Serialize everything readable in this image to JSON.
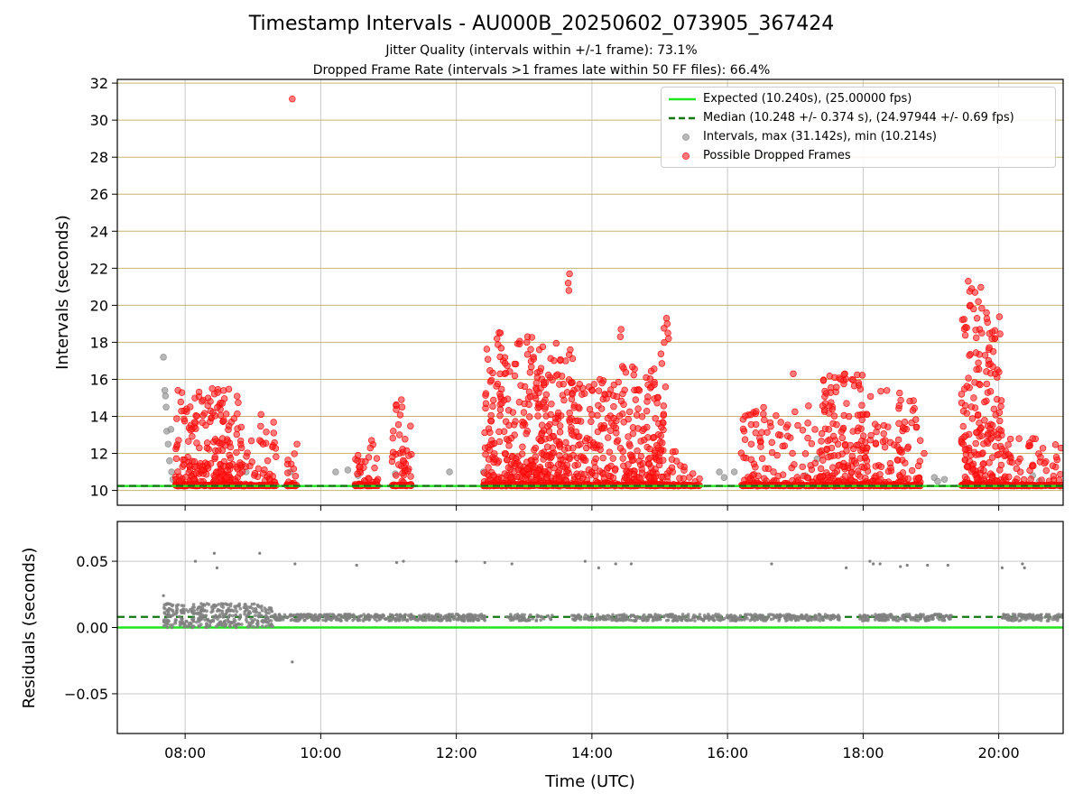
{
  "figure": {
    "title": "Timestamp Intervals - AU000B_20250602_073905_367424",
    "subtitle_1": "Jitter Quality (intervals within +/-1 frame): 73.1%",
    "subtitle_2": "Dropped Frame Rate (intervals >1 frames late within 50 FF files): 66.4%"
  },
  "colors": {
    "expected": "#22e522",
    "median": "#117711",
    "interval": "#999999",
    "dropped": "#ff2222",
    "residual": "#808080",
    "grid_top": "#c8b46e",
    "grid": "#c8c8c8"
  },
  "legend": {
    "expected": "Expected (10.240s), (25.00000 fps)",
    "median": "Median (10.248 +/- 0.374 s), (24.97944 +/- 0.69 fps)",
    "intervals": "Intervals, max (31.142s), min (10.214s)",
    "dropped": "Possible Dropped Frames"
  },
  "chart_data": [
    {
      "type": "scatter",
      "panel": "top",
      "ylabel": "Intervals (seconds)",
      "ylim": [
        9.2,
        32.2
      ],
      "yticks": [
        "10",
        "12",
        "14",
        "16",
        "18",
        "20",
        "22",
        "24",
        "26",
        "28",
        "30",
        "32"
      ],
      "xlim_hours": [
        7.0,
        20.95
      ],
      "xticks": [
        "08:00",
        "10:00",
        "12:00",
        "14:00",
        "16:00",
        "18:00",
        "20:00"
      ],
      "grid": "on",
      "legend_position": "upper-right",
      "expected_line": 10.24,
      "median_line": 10.248,
      "series": [
        {
          "name": "Intervals, max (31.142s), min (10.214s)",
          "points": [
            [
              7.68,
              17.2
            ],
            [
              7.7,
              15.4
            ],
            [
              7.71,
              15.1
            ],
            [
              7.72,
              14.5
            ],
            [
              7.73,
              13.2
            ],
            [
              7.75,
              12.5
            ],
            [
              7.77,
              11.6
            ],
            [
              7.79,
              13.3
            ],
            [
              7.8,
              11.0
            ],
            [
              7.82,
              10.6
            ],
            [
              8.9,
              11.0
            ],
            [
              9.55,
              11.0
            ],
            [
              10.22,
              11.0
            ],
            [
              10.4,
              11.1
            ],
            [
              10.55,
              10.8
            ],
            [
              11.1,
              10.9
            ],
            [
              11.9,
              11.0
            ],
            [
              12.4,
              11.0
            ],
            [
              15.88,
              11.0
            ],
            [
              15.95,
              10.7
            ],
            [
              16.1,
              11.0
            ],
            [
              17.15,
              10.8
            ],
            [
              17.32,
              11.7
            ],
            [
              19.05,
              10.7
            ],
            [
              19.1,
              10.5
            ],
            [
              19.2,
              10.6
            ],
            [
              20.5,
              10.8
            ],
            [
              20.6,
              10.5
            ]
          ]
        },
        {
          "name": "Possible Dropped Frames",
          "clusters": [
            [
              7.85,
              8.85,
              10.3,
              15.5,
              240
            ],
            [
              8.85,
              9.35,
              10.3,
              14.4,
              40
            ],
            [
              9.5,
              9.65,
              10.3,
              12.5,
              15
            ],
            [
              10.5,
              10.85,
              10.3,
              12.7,
              30
            ],
            [
              11.05,
              11.35,
              10.3,
              14.9,
              40
            ],
            [
              12.4,
              13.25,
              10.3,
              18.6,
              260
            ],
            [
              13.25,
              13.75,
              10.3,
              18.0,
              160
            ],
            [
              13.75,
              14.3,
              10.3,
              16.0,
              120
            ],
            [
              14.3,
              14.95,
              10.3,
              17.0,
              150
            ],
            [
              14.95,
              15.12,
              10.3,
              19.3,
              45
            ],
            [
              15.1,
              15.6,
              10.3,
              12.1,
              20
            ],
            [
              16.2,
              17.35,
              10.3,
              14.6,
              110
            ],
            [
              17.35,
              18.05,
              10.3,
              16.3,
              170
            ],
            [
              18.05,
              18.85,
              10.3,
              15.4,
              110
            ],
            [
              19.45,
              19.75,
              10.3,
              21.3,
              110
            ],
            [
              19.75,
              20.05,
              10.3,
              19.6,
              90
            ],
            [
              20.05,
              20.95,
              10.3,
              12.8,
              60
            ]
          ],
          "baseline_value": 10.24,
          "points": [
            [
              9.58,
              31.142
            ],
            [
              13.67,
              21.7
            ],
            [
              13.65,
              21.2
            ],
            [
              13.66,
              20.8
            ],
            [
              13.68,
              17.6
            ],
            [
              12.65,
              18.5
            ],
            [
              12.6,
              18.2
            ],
            [
              13.05,
              18.3
            ],
            [
              13.04,
              18.0
            ],
            [
              14.43,
              18.7
            ],
            [
              14.42,
              18.3
            ],
            [
              14.45,
              16.7
            ],
            [
              15.1,
              19.3
            ],
            [
              15.11,
              19.0
            ],
            [
              15.12,
              18.5
            ],
            [
              15.13,
              18.2
            ],
            [
              19.55,
              21.3
            ],
            [
              19.6,
              20.9
            ],
            [
              19.65,
              20.7
            ],
            [
              19.7,
              20.2
            ],
            [
              19.82,
              19.6
            ],
            [
              19.58,
              20.0
            ],
            [
              19.63,
              19.8
            ],
            [
              19.68,
              19.3
            ],
            [
              19.72,
              18.7
            ],
            [
              16.97,
              16.3
            ],
            [
              17.73,
              16.3
            ],
            [
              17.67,
              16.0
            ],
            [
              17.58,
              16.1
            ],
            [
              8.4,
              15.5
            ],
            [
              11.19,
              14.9
            ],
            [
              11.2,
              14.5
            ],
            [
              9.1,
              12.7
            ],
            [
              9.15,
              12.5
            ],
            [
              9.65,
              12.5
            ],
            [
              10.75,
              12.7
            ],
            [
              10.55,
              11.9
            ],
            [
              13.14,
              17.1
            ],
            [
              13.25,
              16.6
            ],
            [
              13.18,
              15.8
            ],
            [
              14.8,
              16.1
            ],
            [
              14.7,
              15.4
            ],
            [
              15.23,
              12.1
            ],
            [
              16.35,
              12.5
            ],
            [
              18.35,
              15.4
            ],
            [
              18.9,
              12.0
            ],
            [
              20.3,
              12.8
            ],
            [
              20.5,
              12.8
            ],
            [
              20.85,
              11.8
            ],
            [
              19.75,
              18.5
            ],
            [
              19.9,
              18.2
            ],
            [
              19.92,
              17.5
            ],
            [
              19.95,
              16.3
            ],
            [
              19.8,
              17.3
            ],
            [
              19.85,
              16.8
            ]
          ]
        }
      ]
    },
    {
      "type": "scatter",
      "panel": "bottom",
      "xlabel": "Time (UTC)",
      "ylabel": "Residuals (seconds)",
      "ylim": [
        -0.08,
        0.08
      ],
      "yticks": [
        "−0.05",
        "0.00",
        "0.05"
      ],
      "xlim_hours": [
        7.0,
        20.95
      ],
      "xticks": [
        "08:00",
        "10:00",
        "12:00",
        "14:00",
        "16:00",
        "18:00",
        "20:00"
      ],
      "grid": "on",
      "expected_line": 0.0,
      "median_line": 0.008,
      "series": [
        {
          "name": "Residuals",
          "bands": [
            [
              7.68,
              9.3,
              0.0,
              0.018,
              380
            ],
            [
              9.3,
              12.45,
              0.005,
              0.01,
              420
            ],
            [
              12.75,
              13.45,
              0.005,
              0.01,
              60
            ],
            [
              13.7,
              15.5,
              0.005,
              0.01,
              200
            ],
            [
              15.5,
              16.6,
              0.005,
              0.01,
              130
            ],
            [
              16.6,
              17.35,
              0.005,
              0.01,
              90
            ],
            [
              17.35,
              17.65,
              0.005,
              0.01,
              35
            ],
            [
              17.95,
              19.3,
              0.005,
              0.01,
              160
            ],
            [
              20.05,
              20.95,
              0.005,
              0.01,
              110
            ]
          ],
          "points": [
            [
              7.68,
              0.024
            ],
            [
              8.15,
              0.05
            ],
            [
              8.43,
              0.056
            ],
            [
              8.47,
              0.045
            ],
            [
              9.1,
              0.056
            ],
            [
              9.62,
              0.048
            ],
            [
              10.53,
              0.047
            ],
            [
              11.12,
              0.049
            ],
            [
              11.22,
              0.05
            ],
            [
              12.0,
              0.05
            ],
            [
              12.42,
              0.049
            ],
            [
              12.82,
              0.048
            ],
            [
              13.9,
              0.05
            ],
            [
              14.1,
              0.045
            ],
            [
              14.35,
              0.048
            ],
            [
              14.58,
              0.048
            ],
            [
              16.65,
              0.048
            ],
            [
              17.75,
              0.045
            ],
            [
              18.1,
              0.05
            ],
            [
              18.15,
              0.048
            ],
            [
              18.25,
              0.048
            ],
            [
              18.55,
              0.046
            ],
            [
              18.65,
              0.047
            ],
            [
              18.95,
              0.047
            ],
            [
              19.25,
              0.047
            ],
            [
              20.05,
              0.045
            ],
            [
              20.35,
              0.048
            ],
            [
              20.38,
              0.045
            ],
            [
              9.58,
              -0.026
            ]
          ]
        }
      ]
    }
  ]
}
